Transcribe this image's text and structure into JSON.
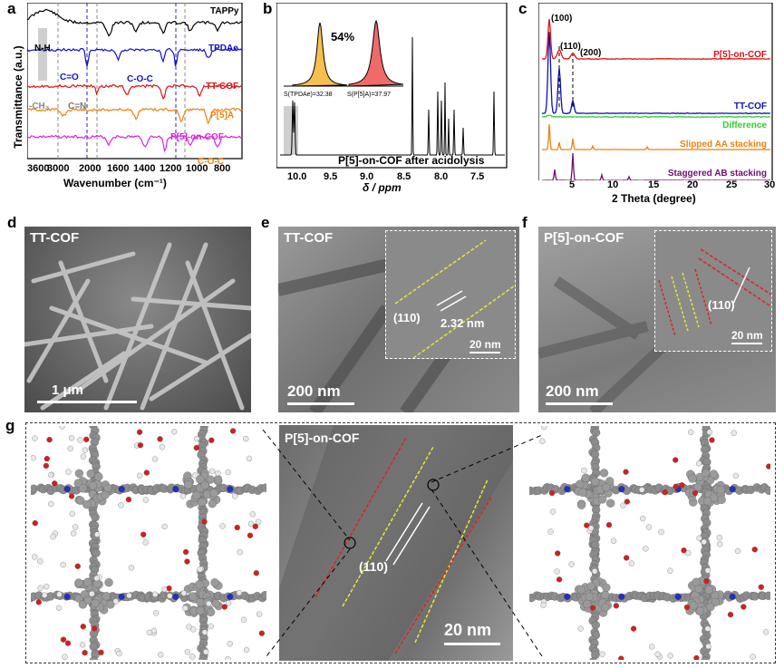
{
  "panels": {
    "a": {
      "letter": "a",
      "ylabel": "Transmittance (a.u.)",
      "xlabel": "Wavenumber (cm⁻¹)",
      "xticks": [
        "3600",
        "3000",
        "2000",
        "1600",
        "1400",
        "1200",
        "1000",
        "800"
      ],
      "series": [
        {
          "name": "TAPPy",
          "color": "#000000"
        },
        {
          "name": "TPDAe",
          "color": "#1010d0"
        },
        {
          "name": "TT-COF",
          "color": "#e01010"
        },
        {
          "name": "P[5]A",
          "color": "#f08010"
        },
        {
          "name": "P[5]-on-COF",
          "color": "#e020e0"
        }
      ],
      "annotations": {
        "nh": "N-H",
        "co": "C=O",
        "coc1": "C-O-C",
        "ch3": "-CH₃",
        "cn": "C=N",
        "coc2": "C-O-C"
      }
    },
    "b": {
      "letter": "b",
      "xlabel": "δ / ppm",
      "xticks": [
        "10.0",
        "9.5",
        "9.0",
        "8.5",
        "8.0",
        "7.5"
      ],
      "inset_percent": "54%",
      "inset_s1": "S(TPDAe)=32.38",
      "inset_s2": "S(P[5]A)=37.97",
      "caption": "P[5]-on-COF after acidolysis"
    },
    "c": {
      "letter": "c",
      "xlabel": "2 Theta (degree)",
      "xticks": [
        "5",
        "10",
        "15",
        "20",
        "25",
        "30"
      ],
      "peaks": [
        "(100)",
        "(110)",
        "(200)"
      ],
      "series": [
        {
          "name": "P[5]-on-COF",
          "color": "#e01010"
        },
        {
          "name": "TT-COF",
          "color": "#1010b0"
        },
        {
          "name": "Difference",
          "color": "#30d030"
        },
        {
          "name": "Slipped AA stacking",
          "color": "#f08010"
        },
        {
          "name": "Staggered AB stacking",
          "color": "#701070"
        }
      ]
    },
    "d": {
      "letter": "d",
      "label": "TT-COF",
      "scale": "1 μm"
    },
    "e": {
      "letter": "e",
      "label": "TT-COF",
      "scale": "200 nm",
      "inset_plane": "(110)",
      "inset_dist": "2.32 nm",
      "inset_scale": "20 nm"
    },
    "f": {
      "letter": "f",
      "label": "P[5]-on-COF",
      "scale": "200 nm",
      "inset_plane": "(110)",
      "inset_scale": "20 nm"
    },
    "g": {
      "letter": "g",
      "label": "P[5]-on-COF",
      "plane": "(110)",
      "scale": "20 nm"
    }
  }
}
